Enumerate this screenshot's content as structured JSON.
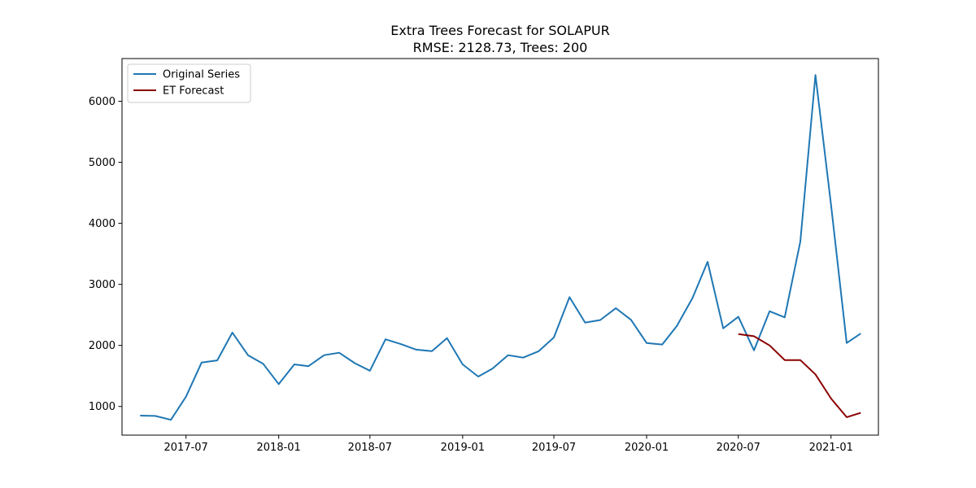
{
  "chart_data": {
    "type": "line",
    "title": "Extra Trees Forecast for SOLAPUR",
    "subtitle": "RMSE: 2128.73, Trees: 200",
    "xlabel": "",
    "ylabel": "",
    "x_tick_labels": [
      "2017-07",
      "2018-01",
      "2018-07",
      "2019-01",
      "2019-07",
      "2020-01",
      "2020-07",
      "2021-01"
    ],
    "y_ticks": [
      1000,
      2000,
      3000,
      4000,
      5000,
      6000
    ],
    "xlim": [
      "2017-02-24",
      "2021-04-05"
    ],
    "ylim": [
      530,
      6700
    ],
    "grid": false,
    "legend_position": "top-left",
    "series": [
      {
        "name": "Original Series",
        "color": "#1f77b4",
        "x": [
          "2017-04",
          "2017-05",
          "2017-06",
          "2017-07",
          "2017-08",
          "2017-09",
          "2017-10",
          "2017-11",
          "2017-12",
          "2018-01",
          "2018-02",
          "2018-03",
          "2018-04",
          "2018-05",
          "2018-06",
          "2018-07",
          "2018-08",
          "2018-09",
          "2018-10",
          "2018-11",
          "2018-12",
          "2019-01",
          "2019-02",
          "2019-03",
          "2019-04",
          "2019-05",
          "2019-06",
          "2019-07",
          "2019-08",
          "2019-09",
          "2019-10",
          "2019-11",
          "2019-12",
          "2020-01",
          "2020-02",
          "2020-03",
          "2020-04",
          "2020-05",
          "2020-06",
          "2020-07",
          "2020-08",
          "2020-09",
          "2020-10",
          "2020-11",
          "2020-12",
          "2021-01",
          "2021-02",
          "2021-03"
        ],
        "values": [
          850,
          845,
          780,
          1160,
          1720,
          1755,
          2210,
          1840,
          1700,
          1365,
          1690,
          1660,
          1840,
          1880,
          1710,
          1585,
          2100,
          2020,
          1930,
          1905,
          2120,
          1690,
          1490,
          1620,
          1840,
          1800,
          1905,
          2130,
          2790,
          2375,
          2415,
          2610,
          2420,
          2040,
          2015,
          2320,
          2775,
          3370,
          2280,
          2470,
          1920,
          2560,
          2460,
          3700,
          6430,
          4300,
          2040,
          2195
        ]
      },
      {
        "name": "ET Forecast",
        "color": "#8b0000",
        "x": [
          "2020-07",
          "2020-08",
          "2020-09",
          "2020-10",
          "2020-11",
          "2020-12",
          "2021-01",
          "2021-02",
          "2021-03"
        ],
        "values": [
          2185,
          2150,
          2000,
          1760,
          1760,
          1525,
          1130,
          825,
          895
        ]
      }
    ]
  }
}
